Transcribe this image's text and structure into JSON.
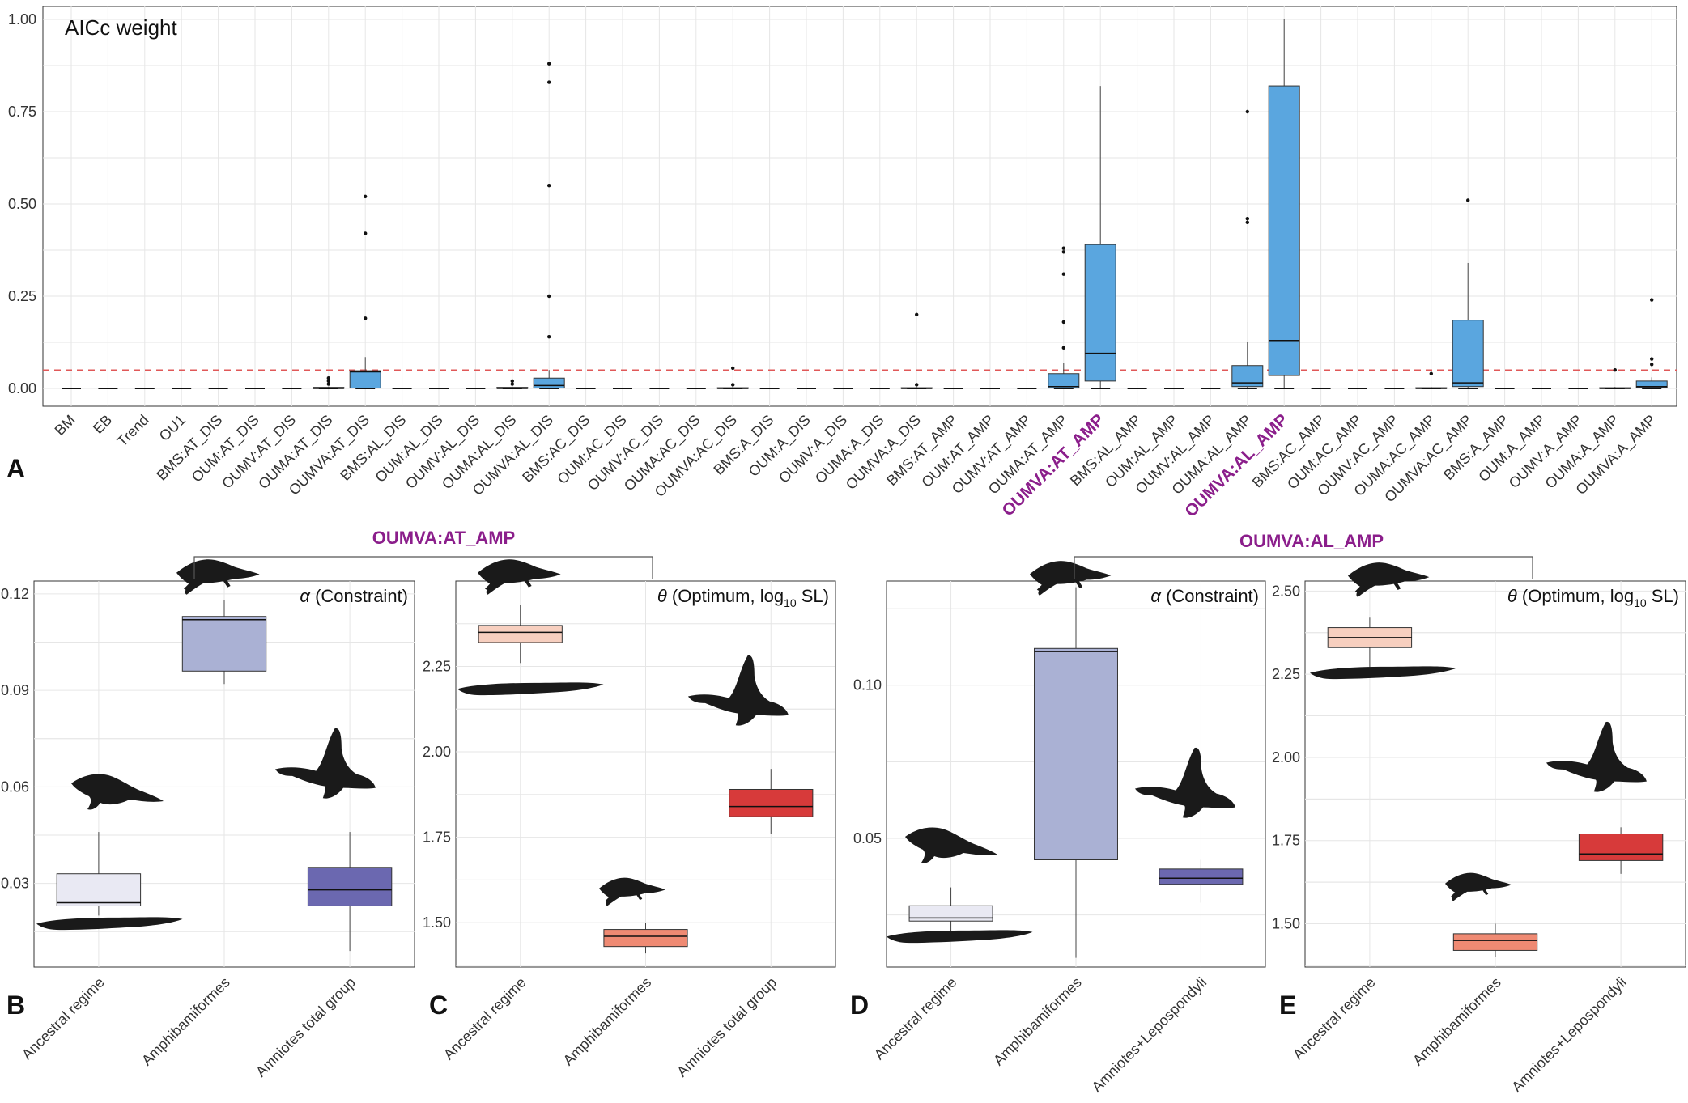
{
  "colors": {
    "blue_box": "#5aa6df",
    "highlight": "#8b1e8b",
    "threshold": "#e05858",
    "grid": "#e6e6e6",
    "ancestral": "#e9e9f3",
    "amphibamiformes_alpha": "#aab1d4",
    "amniotes_alpha": "#6b68b0",
    "ancestral_theta": "#f7cfbf",
    "amphibamiformes_theta": "#ef8a73",
    "amniotes_theta": "#d73a3a",
    "silhouette": "#1a1a1a"
  },
  "panel_letters": [
    "A",
    "B",
    "C",
    "D",
    "E"
  ],
  "headers": {
    "left": "OUMVA:AT_AMP",
    "right": "OUMVA:AL_AMP"
  },
  "chart_data": [
    {
      "panel": "A",
      "type": "box",
      "title": "AICc weight",
      "ylim": [
        0,
        1.0
      ],
      "yticks": [
        "0.00",
        "0.25",
        "0.50",
        "0.75",
        "1.00"
      ],
      "threshold": 0.05,
      "grid": true,
      "highlighted_categories": [
        "OUMVA:AT_AMP",
        "OUMVA:AL_AMP"
      ],
      "categories": [
        "BM",
        "EB",
        "Trend",
        "OU1",
        "BMS:AT_DIS",
        "OUM:AT_DIS",
        "OUMV:AT_DIS",
        "OUMA:AT_DIS",
        "OUMVA:AT_DIS",
        "BMS:AL_DIS",
        "OUM:AL_DIS",
        "OUMV:AL_DIS",
        "OUMA:AL_DIS",
        "OUMVA:AL_DIS",
        "BMS:AC_DIS",
        "OUM:AC_DIS",
        "OUMV:AC_DIS",
        "OUMA:AC_DIS",
        "OUMVA:AC_DIS",
        "BMS:A_DIS",
        "OUM:A_DIS",
        "OUMV:A_DIS",
        "OUMA:A_DIS",
        "OUMVA:A_DIS",
        "BMS:AT_AMP",
        "OUM:AT_AMP",
        "OUMV:AT_AMP",
        "OUMA:AT_AMP",
        "OUMVA:AT_AMP",
        "BMS:AL_AMP",
        "OUM:AL_AMP",
        "OUMV:AL_AMP",
        "OUMA:AL_AMP",
        "OUMVA:AL_AMP",
        "BMS:AC_AMP",
        "OUM:AC_AMP",
        "OUMV:AC_AMP",
        "OUMA:AC_AMP",
        "OUMVA:AC_AMP",
        "BMS:A_AMP",
        "OUM:A_AMP",
        "OUMV:A_AMP",
        "OUMA:A_AMP",
        "OUMVA:A_AMP"
      ],
      "boxes": [
        {
          "c": "OUMA:AT_DIS",
          "q1": 0,
          "med": 0,
          "q3": 0.003,
          "lo": 0,
          "hi": 0.005,
          "outliers": [
            0.012,
            0.02,
            0.028
          ]
        },
        {
          "c": "OUMVA:AT_DIS",
          "q1": 0.001,
          "med": 0.045,
          "q3": 0.048,
          "lo": 0,
          "hi": 0.085,
          "outliers": [
            0.19,
            0.42,
            0.52
          ]
        },
        {
          "c": "OUMA:AL_DIS",
          "q1": 0,
          "med": 0,
          "q3": 0.003,
          "lo": 0,
          "hi": 0.005,
          "outliers": [
            0.012,
            0.02
          ]
        },
        {
          "c": "OUMVA:AL_DIS",
          "q1": 0.001,
          "med": 0.008,
          "q3": 0.028,
          "lo": 0,
          "hi": 0.05,
          "outliers": [
            0.14,
            0.25,
            0.55,
            0.83,
            0.88
          ]
        },
        {
          "c": "OUMVA:AC_DIS",
          "q1": 0,
          "med": 0,
          "q3": 0.002,
          "lo": 0,
          "hi": 0.005,
          "outliers": [
            0.01,
            0.055
          ]
        },
        {
          "c": "OUMVA:A_DIS",
          "q1": 0,
          "med": 0,
          "q3": 0.002,
          "lo": 0,
          "hi": 0.004,
          "outliers": [
            0.01,
            0.2
          ]
        },
        {
          "c": "OUMA:AT_AMP",
          "q1": 0.001,
          "med": 0.005,
          "q3": 0.04,
          "lo": 0,
          "hi": 0.07,
          "outliers": [
            0.11,
            0.18,
            0.31,
            0.37,
            0.38
          ]
        },
        {
          "c": "OUMVA:AT_AMP",
          "q1": 0.02,
          "med": 0.095,
          "q3": 0.39,
          "lo": 0,
          "hi": 0.82,
          "outliers": []
        },
        {
          "c": "OUMA:AL_AMP",
          "q1": 0.005,
          "med": 0.015,
          "q3": 0.062,
          "lo": 0,
          "hi": 0.125,
          "outliers": [
            0.45,
            0.46,
            0.75
          ]
        },
        {
          "c": "OUMVA:AL_AMP",
          "q1": 0.035,
          "med": 0.13,
          "q3": 0.82,
          "lo": 0,
          "hi": 1.0,
          "outliers": []
        },
        {
          "c": "OUMA:AC_AMP",
          "q1": 0,
          "med": 0,
          "q3": 0.002,
          "lo": 0,
          "hi": 0.004,
          "outliers": [
            0.04
          ]
        },
        {
          "c": "OUMVA:AC_AMP",
          "q1": 0.005,
          "med": 0.015,
          "q3": 0.185,
          "lo": 0,
          "hi": 0.34,
          "outliers": [
            0.51
          ]
        },
        {
          "c": "OUMA:A_AMP",
          "q1": 0,
          "med": 0,
          "q3": 0.002,
          "lo": 0,
          "hi": 0.004,
          "outliers": [
            0.05
          ]
        },
        {
          "c": "OUMVA:A_AMP",
          "q1": 0.002,
          "med": 0.005,
          "q3": 0.02,
          "lo": 0,
          "hi": 0.03,
          "outliers": [
            0.065,
            0.08,
            0.24
          ]
        }
      ]
    },
    {
      "panel": "B",
      "type": "box",
      "title": "(Constraint)",
      "symbol": "α",
      "categories": [
        "Ancestral regime",
        "Amphibamiformes",
        "Amniotes total group"
      ],
      "ylim": [
        0.004,
        0.124
      ],
      "yticks": [
        "0.03",
        "0.06",
        "0.09",
        "0.12"
      ],
      "boxes": [
        {
          "q1": 0.023,
          "med": 0.024,
          "q3": 0.033,
          "lo": 0.02,
          "hi": 0.046
        },
        {
          "q1": 0.096,
          "med": 0.112,
          "q3": 0.113,
          "lo": 0.092,
          "hi": 0.118
        },
        {
          "q1": 0.023,
          "med": 0.028,
          "q3": 0.035,
          "lo": 0.009,
          "hi": 0.046
        }
      ]
    },
    {
      "panel": "C",
      "type": "box",
      "title": "(Optimum, log",
      "symbol": "θ",
      "subscript": "10",
      "title_suffix": " SL)",
      "categories": [
        "Ancestral regime",
        "Amphibamiformes",
        "Amniotes total group"
      ],
      "ylim": [
        1.37,
        2.5
      ],
      "yticks": [
        "1.50",
        "1.75",
        "2.00",
        "2.25"
      ],
      "boxes": [
        {
          "q1": 2.32,
          "med": 2.35,
          "q3": 2.37,
          "lo": 2.26,
          "hi": 2.43
        },
        {
          "q1": 1.43,
          "med": 1.46,
          "q3": 1.48,
          "lo": 1.41,
          "hi": 1.5
        },
        {
          "q1": 1.81,
          "med": 1.84,
          "q3": 1.89,
          "lo": 1.76,
          "hi": 1.95
        }
      ]
    },
    {
      "panel": "D",
      "type": "box",
      "title": "(Constraint)",
      "symbol": "α",
      "categories": [
        "Ancestral regime",
        "Amphibamiformes",
        "Amniotes+Lepospondyli"
      ],
      "ylim": [
        0.008,
        0.134
      ],
      "yticks": [
        "0.05",
        "0.10"
      ],
      "boxes": [
        {
          "q1": 0.023,
          "med": 0.024,
          "q3": 0.028,
          "lo": 0.019,
          "hi": 0.034
        },
        {
          "q1": 0.043,
          "med": 0.111,
          "q3": 0.112,
          "lo": 0.011,
          "hi": 0.132
        },
        {
          "q1": 0.035,
          "med": 0.037,
          "q3": 0.04,
          "lo": 0.029,
          "hi": 0.043
        }
      ]
    },
    {
      "panel": "E",
      "type": "box",
      "title": "(Optimum, log",
      "symbol": "θ",
      "subscript": "10",
      "title_suffix": " SL)",
      "categories": [
        "Ancestral regime",
        "Amphibamiformes",
        "Amniotes+Lepospondyli"
      ],
      "ylim": [
        1.37,
        2.53
      ],
      "yticks": [
        "1.50",
        "1.75",
        "2.00",
        "2.25",
        "2.50"
      ],
      "boxes": [
        {
          "q1": 2.33,
          "med": 2.36,
          "q3": 2.39,
          "lo": 2.27,
          "hi": 2.42
        },
        {
          "q1": 1.42,
          "med": 1.45,
          "q3": 1.47,
          "lo": 1.4,
          "hi": 1.5
        },
        {
          "q1": 1.69,
          "med": 1.71,
          "q3": 1.77,
          "lo": 1.65,
          "hi": 1.79
        }
      ]
    }
  ]
}
